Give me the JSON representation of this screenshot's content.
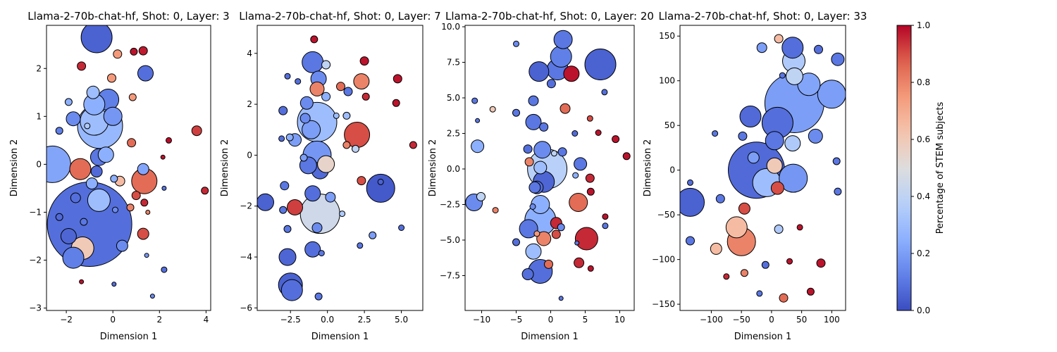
{
  "chart_data": [
    {
      "type": "scatter",
      "title": "Llama-2-70b-chat-hf, Shot: 0, Layer: 3",
      "xlabel": "Dimension 1",
      "ylabel": "Dimension 2",
      "xlim": [
        -2.85,
        4.2
      ],
      "ylim": [
        -3.05,
        2.9
      ],
      "xticks": [
        -2,
        0,
        2,
        4
      ],
      "yticks": [
        -3,
        -2,
        -1,
        0,
        1,
        2
      ],
      "points": [
        [
          -1.0,
          -1.25,
          0.08,
          60
        ],
        [
          -2.6,
          0.0,
          0.22,
          26
        ],
        [
          -0.55,
          0.8,
          0.28,
          32
        ],
        [
          -0.7,
          2.65,
          0.05,
          22
        ],
        [
          -0.8,
          0.9,
          0.3,
          20
        ],
        [
          -1.3,
          -1.75,
          0.6,
          16
        ],
        [
          1.35,
          -0.35,
          0.85,
          18
        ],
        [
          -1.7,
          -1.95,
          0.12,
          15
        ],
        [
          -1.4,
          -0.1,
          0.85,
          15
        ],
        [
          -0.6,
          -0.75,
          0.3,
          16
        ],
        [
          -0.2,
          1.35,
          0.12,
          15
        ],
        [
          0.0,
          1.0,
          0.18,
          13
        ],
        [
          -0.8,
          1.25,
          0.25,
          15
        ],
        [
          -0.6,
          0.15,
          0.1,
          12
        ],
        [
          -0.3,
          0.2,
          0.25,
          11
        ],
        [
          1.4,
          1.9,
          0.08,
          11
        ],
        [
          -1.9,
          -1.5,
          0.06,
          11
        ],
        [
          -1.7,
          0.95,
          0.15,
          10
        ],
        [
          -0.85,
          1.5,
          0.3,
          9
        ],
        [
          1.3,
          -0.1,
          0.22,
          8
        ],
        [
          0.4,
          -1.7,
          0.15,
          8
        ],
        [
          -0.9,
          -0.4,
          0.25,
          8
        ],
        [
          1.3,
          -1.45,
          0.9,
          8
        ],
        [
          -0.7,
          -0.15,
          0.07,
          8
        ],
        [
          -1.6,
          -0.7,
          0.08,
          7
        ],
        [
          3.6,
          0.7,
          0.92,
          7
        ],
        [
          0.8,
          0.45,
          0.85,
          6
        ],
        [
          0.3,
          -0.35,
          0.65,
          7
        ],
        [
          -1.35,
          2.05,
          0.95,
          6
        ],
        [
          1.3,
          2.37,
          0.97,
          6
        ],
        [
          0.2,
          2.3,
          0.75,
          6
        ],
        [
          -0.05,
          1.8,
          0.75,
          6
        ],
        [
          0.9,
          2.35,
          0.98,
          5
        ],
        [
          0.75,
          -0.9,
          0.8,
          5
        ],
        [
          1.0,
          -0.65,
          0.9,
          6
        ],
        [
          3.95,
          -0.55,
          0.95,
          5
        ],
        [
          -2.3,
          0.7,
          0.12,
          5
        ],
        [
          -2.3,
          -1.1,
          0.07,
          5
        ],
        [
          -1.25,
          -1.2,
          0.1,
          5
        ],
        [
          -1.9,
          1.3,
          0.25,
          5
        ],
        [
          0.85,
          1.4,
          0.75,
          5
        ],
        [
          1.35,
          -0.8,
          0.95,
          5
        ],
        [
          2.4,
          0.5,
          0.99,
          4
        ],
        [
          2.15,
          0.15,
          0.98,
          3
        ],
        [
          2.2,
          -0.5,
          0.1,
          3
        ],
        [
          2.2,
          -2.2,
          0.08,
          4
        ],
        [
          1.45,
          -1.9,
          0.18,
          3
        ],
        [
          1.5,
          -1.0,
          0.8,
          3
        ],
        [
          -1.35,
          -2.45,
          0.98,
          3
        ],
        [
          0.05,
          -2.5,
          0.08,
          3
        ],
        [
          1.7,
          -2.75,
          0.15,
          3
        ],
        [
          -1.1,
          0.8,
          0.35,
          4
        ],
        [
          0.05,
          -0.3,
          0.25,
          5
        ],
        [
          0.1,
          -0.95,
          0.15,
          4
        ]
      ]
    },
    {
      "type": "scatter",
      "title": "Llama-2-70b-chat-hf, Shot: 0, Layer: 7",
      "xlabel": "Dimension 1",
      "ylabel": "Dimension 2",
      "xlim": [
        -4.75,
        6.45
      ],
      "ylim": [
        -6.1,
        5.1
      ],
      "xticks": [
        -2.5,
        0.0,
        2.5,
        5.0
      ],
      "yticks": [
        -6,
        -4,
        -2,
        0,
        2,
        4
      ],
      "points": [
        [
          -0.5,
          -2.3,
          0.45,
          28
        ],
        [
          -0.7,
          1.3,
          0.3,
          28
        ],
        [
          -0.7,
          0.0,
          0.18,
          20
        ],
        [
          2.0,
          0.8,
          0.9,
          18
        ],
        [
          3.6,
          -1.3,
          0.03,
          20
        ],
        [
          -2.5,
          -5.1,
          0.05,
          17
        ],
        [
          -2.4,
          -5.3,
          0.08,
          15
        ],
        [
          -1.0,
          3.65,
          0.1,
          15
        ],
        [
          -1.1,
          1.0,
          0.2,
          13
        ],
        [
          -0.5,
          -0.6,
          0.07,
          12
        ],
        [
          -1.3,
          -0.4,
          0.1,
          12
        ],
        [
          -4.2,
          -1.85,
          0.05,
          12
        ],
        [
          -2.7,
          -4.0,
          0.06,
          12
        ],
        [
          -1.0,
          -1.5,
          0.08,
          11
        ],
        [
          -2.2,
          -2.05,
          0.92,
          11
        ],
        [
          2.3,
          2.9,
          0.8,
          11
        ],
        [
          -0.6,
          3.0,
          0.15,
          11
        ],
        [
          -1.0,
          -3.7,
          0.08,
          11
        ],
        [
          -0.7,
          2.6,
          0.8,
          10
        ],
        [
          -0.1,
          -0.35,
          0.55,
          12
        ],
        [
          -1.4,
          2.05,
          0.15,
          9
        ],
        [
          -2.2,
          0.6,
          0.2,
          9
        ],
        [
          -0.7,
          -2.85,
          0.15,
          7
        ],
        [
          0.2,
          -1.65,
          0.2,
          7
        ],
        [
          2.3,
          -1.0,
          0.9,
          6
        ],
        [
          -2.9,
          -1.2,
          0.1,
          6
        ],
        [
          -3.0,
          1.75,
          0.08,
          6
        ],
        [
          -1.5,
          1.45,
          0.15,
          7
        ],
        [
          0.9,
          2.7,
          0.85,
          6
        ],
        [
          1.4,
          2.5,
          0.1,
          6
        ],
        [
          2.5,
          3.7,
          0.98,
          6
        ],
        [
          -0.1,
          3.55,
          0.4,
          6
        ],
        [
          4.75,
          3.0,
          0.98,
          6
        ],
        [
          -0.1,
          2.3,
          0.25,
          6
        ],
        [
          5.8,
          0.4,
          0.95,
          5
        ],
        [
          2.6,
          2.3,
          0.95,
          5
        ],
        [
          4.65,
          2.05,
          0.98,
          5
        ],
        [
          3.05,
          -3.15,
          0.2,
          5
        ],
        [
          -2.7,
          -2.9,
          0.1,
          5
        ],
        [
          -3.0,
          -2.15,
          0.1,
          5
        ],
        [
          -0.9,
          4.55,
          0.98,
          5
        ],
        [
          -2.55,
          0.7,
          0.25,
          5
        ],
        [
          -3.1,
          0.65,
          0.08,
          4
        ],
        [
          -2.7,
          3.1,
          0.08,
          4
        ],
        [
          -2.0,
          2.9,
          0.08,
          4
        ],
        [
          -1.6,
          -0.1,
          0.2,
          5
        ],
        [
          1.3,
          1.55,
          0.3,
          5
        ],
        [
          1.3,
          0.4,
          0.8,
          5
        ],
        [
          0.6,
          1.55,
          0.3,
          4
        ],
        [
          1.9,
          0.25,
          0.4,
          5
        ],
        [
          1.0,
          -2.3,
          0.35,
          4
        ],
        [
          2.2,
          -3.55,
          0.1,
          4
        ],
        [
          3.6,
          -1.05,
          0.05,
          4
        ],
        [
          5.0,
          -2.85,
          0.08,
          4
        ],
        [
          -0.4,
          -3.85,
          0.1,
          4
        ],
        [
          -0.6,
          -5.55,
          0.1,
          5
        ]
      ]
    },
    {
      "type": "scatter",
      "title": "Llama-2-70b-chat-hf, Shot: 0, Layer: 20",
      "xlabel": "Dimension 1",
      "ylabel": "Dimension 2",
      "xlim": [
        -12.4,
        12.1
      ],
      "ylim": [
        -9.95,
        10.1
      ],
      "xticks": [
        -10,
        -5,
        0,
        5,
        10
      ],
      "yticks": [
        -7.5,
        -5.0,
        -2.5,
        0.0,
        2.5,
        5.0,
        7.5,
        10.0
      ],
      "points": [
        [
          -0.5,
          0.0,
          0.38,
          28
        ],
        [
          -1.5,
          -3.6,
          0.25,
          22
        ],
        [
          7.2,
          7.35,
          0.05,
          22
        ],
        [
          -1.5,
          -7.2,
          0.08,
          17
        ],
        [
          1.0,
          7.0,
          0.1,
          15
        ],
        [
          -1.7,
          6.85,
          0.05,
          14
        ],
        [
          -1.0,
          -0.9,
          0.06,
          15
        ],
        [
          1.5,
          7.9,
          0.12,
          15
        ],
        [
          -1.5,
          -2.5,
          0.25,
          13
        ],
        [
          5.2,
          -4.9,
          0.95,
          16
        ],
        [
          1.8,
          9.1,
          0.1,
          13
        ],
        [
          4.0,
          -2.35,
          0.85,
          13
        ],
        [
          -3.2,
          -4.2,
          0.1,
          13
        ],
        [
          -11.1,
          -2.35,
          0.15,
          12
        ],
        [
          -2.5,
          -5.8,
          0.3,
          11
        ],
        [
          -2.5,
          3.3,
          0.1,
          11
        ],
        [
          -1.2,
          1.35,
          0.15,
          12
        ],
        [
          3.0,
          6.7,
          0.98,
          11
        ],
        [
          -1.0,
          -4.9,
          0.8,
          10
        ],
        [
          -2.0,
          -1.3,
          0.08,
          9
        ],
        [
          -1.5,
          0.1,
          0.3,
          9
        ],
        [
          4.3,
          0.35,
          0.1,
          9
        ],
        [
          -10.6,
          1.6,
          0.25,
          9
        ],
        [
          0.8,
          -3.8,
          0.95,
          8
        ],
        [
          -2.3,
          -1.3,
          0.1,
          8
        ],
        [
          -3.3,
          -7.4,
          0.08,
          8
        ],
        [
          4.1,
          -6.6,
          0.95,
          7
        ],
        [
          2.1,
          4.25,
          0.85,
          7
        ],
        [
          0.8,
          -4.6,
          0.9,
          6
        ],
        [
          -2.5,
          4.8,
          0.1,
          7
        ],
        [
          -0.3,
          -6.7,
          0.85,
          6
        ],
        [
          1.7,
          1.2,
          0.1,
          6
        ],
        [
          -3.3,
          1.4,
          0.08,
          6
        ],
        [
          -1.0,
          2.95,
          0.1,
          6
        ],
        [
          0.1,
          6.0,
          0.08,
          6
        ],
        [
          -3.1,
          0.5,
          0.8,
          6
        ],
        [
          -10.1,
          -1.95,
          0.4,
          6
        ],
        [
          -5.0,
          -5.15,
          0.08,
          5
        ],
        [
          11.0,
          0.9,
          0.98,
          5
        ],
        [
          5.7,
          -0.65,
          0.95,
          6
        ],
        [
          9.4,
          2.1,
          0.98,
          5
        ],
        [
          5.8,
          -1.6,
          0.98,
          5
        ],
        [
          -5.0,
          3.95,
          0.1,
          5
        ],
        [
          1.5,
          -4.1,
          0.15,
          5
        ],
        [
          7.8,
          5.4,
          0.08,
          4
        ],
        [
          6.9,
          2.55,
          0.98,
          4
        ],
        [
          3.5,
          2.5,
          0.07,
          4
        ],
        [
          5.7,
          3.55,
          0.9,
          4
        ],
        [
          7.9,
          -4.0,
          0.1,
          4
        ],
        [
          7.9,
          -3.35,
          0.98,
          4
        ],
        [
          5.8,
          -7.0,
          0.98,
          4
        ],
        [
          3.6,
          -0.45,
          0.25,
          4
        ],
        [
          0.5,
          1.1,
          0.4,
          4
        ],
        [
          -2.6,
          -2.65,
          0.15,
          4
        ],
        [
          -2.0,
          -4.55,
          0.75,
          4
        ],
        [
          3.8,
          -5.2,
          0.1,
          3
        ],
        [
          -11.0,
          4.8,
          0.1,
          4
        ],
        [
          -10.6,
          3.4,
          0.1,
          3
        ],
        [
          -8.4,
          4.2,
          0.6,
          4
        ],
        [
          -8.0,
          -2.9,
          0.8,
          4
        ],
        [
          -5.0,
          8.8,
          0.15,
          4
        ],
        [
          1.5,
          -9.1,
          0.1,
          3
        ]
      ]
    },
    {
      "type": "scatter",
      "title": "Llama-2-70b-chat-hf, Shot: 0, Layer: 33",
      "xlabel": "Dimension 1",
      "ylabel": "Dimension 2",
      "xlim": [
        -152,
        123
      ],
      "ylim": [
        -157,
        162
      ],
      "xticks": [
        -100,
        -50,
        0,
        50,
        100
      ],
      "yticks": [
        -150,
        -100,
        -50,
        0,
        50,
        100,
        150
      ],
      "points": [
        [
          -25,
          0,
          0.07,
          40
        ],
        [
          38,
          75,
          0.2,
          42
        ],
        [
          10,
          53,
          0.08,
          22
        ],
        [
          -8,
          -14,
          0.3,
          20
        ],
        [
          -135,
          -36,
          0.05,
          20
        ],
        [
          -50,
          -80,
          0.8,
          20
        ],
        [
          100,
          85,
          0.2,
          20
        ],
        [
          36,
          -9,
          0.18,
          20
        ],
        [
          62,
          96,
          0.22,
          16
        ],
        [
          37,
          122,
          0.35,
          16
        ],
        [
          -35,
          60,
          0.07,
          15
        ],
        [
          -58,
          -64,
          0.65,
          15
        ],
        [
          35,
          137,
          0.08,
          15
        ],
        [
          38,
          105,
          0.4,
          12
        ],
        [
          5,
          33,
          0.1,
          13
        ],
        [
          35,
          30,
          0.35,
          11
        ],
        [
          5,
          5,
          0.6,
          11
        ],
        [
          10,
          -20,
          0.9,
          9
        ],
        [
          73,
          38,
          0.15,
          10
        ],
        [
          110,
          124,
          0.1,
          9
        ],
        [
          -45,
          -43,
          0.9,
          8
        ],
        [
          -92,
          -88,
          0.65,
          8
        ],
        [
          -30,
          14,
          0.2,
          8
        ],
        [
          20,
          -143,
          0.85,
          6
        ],
        [
          12,
          147,
          0.65,
          6
        ],
        [
          78,
          135,
          0.08,
          6
        ],
        [
          -48,
          38,
          0.1,
          6
        ],
        [
          -85,
          -32,
          0.1,
          6
        ],
        [
          -16,
          137,
          0.2,
          7
        ],
        [
          -135,
          -79,
          0.1,
          6
        ],
        [
          12,
          -66,
          0.35,
          6
        ],
        [
          82,
          -104,
          0.98,
          6
        ],
        [
          65,
          -136,
          0.98,
          5
        ],
        [
          -45,
          -115,
          0.8,
          5
        ],
        [
          -10,
          -106,
          0.08,
          5
        ],
        [
          108,
          10,
          0.1,
          5
        ],
        [
          110,
          -24,
          0.1,
          5
        ],
        [
          30,
          -102,
          0.98,
          4
        ],
        [
          -20,
          -138,
          0.1,
          4
        ],
        [
          -94,
          41,
          0.1,
          4
        ],
        [
          -135,
          -14,
          0.08,
          4
        ],
        [
          -75,
          -119,
          0.95,
          4
        ],
        [
          47,
          -64,
          0.98,
          4
        ],
        [
          18,
          106,
          0.1,
          4
        ]
      ]
    }
  ],
  "colorbar": {
    "label": "Percentage of STEM subjects",
    "ticks": [
      "0.0",
      "0.2",
      "0.4",
      "0.6",
      "0.8",
      "1.0"
    ],
    "colormap": "coolwarm",
    "low_color": "#3b4cc0",
    "mid_color": "#dddddd",
    "high_color": "#b40426"
  }
}
